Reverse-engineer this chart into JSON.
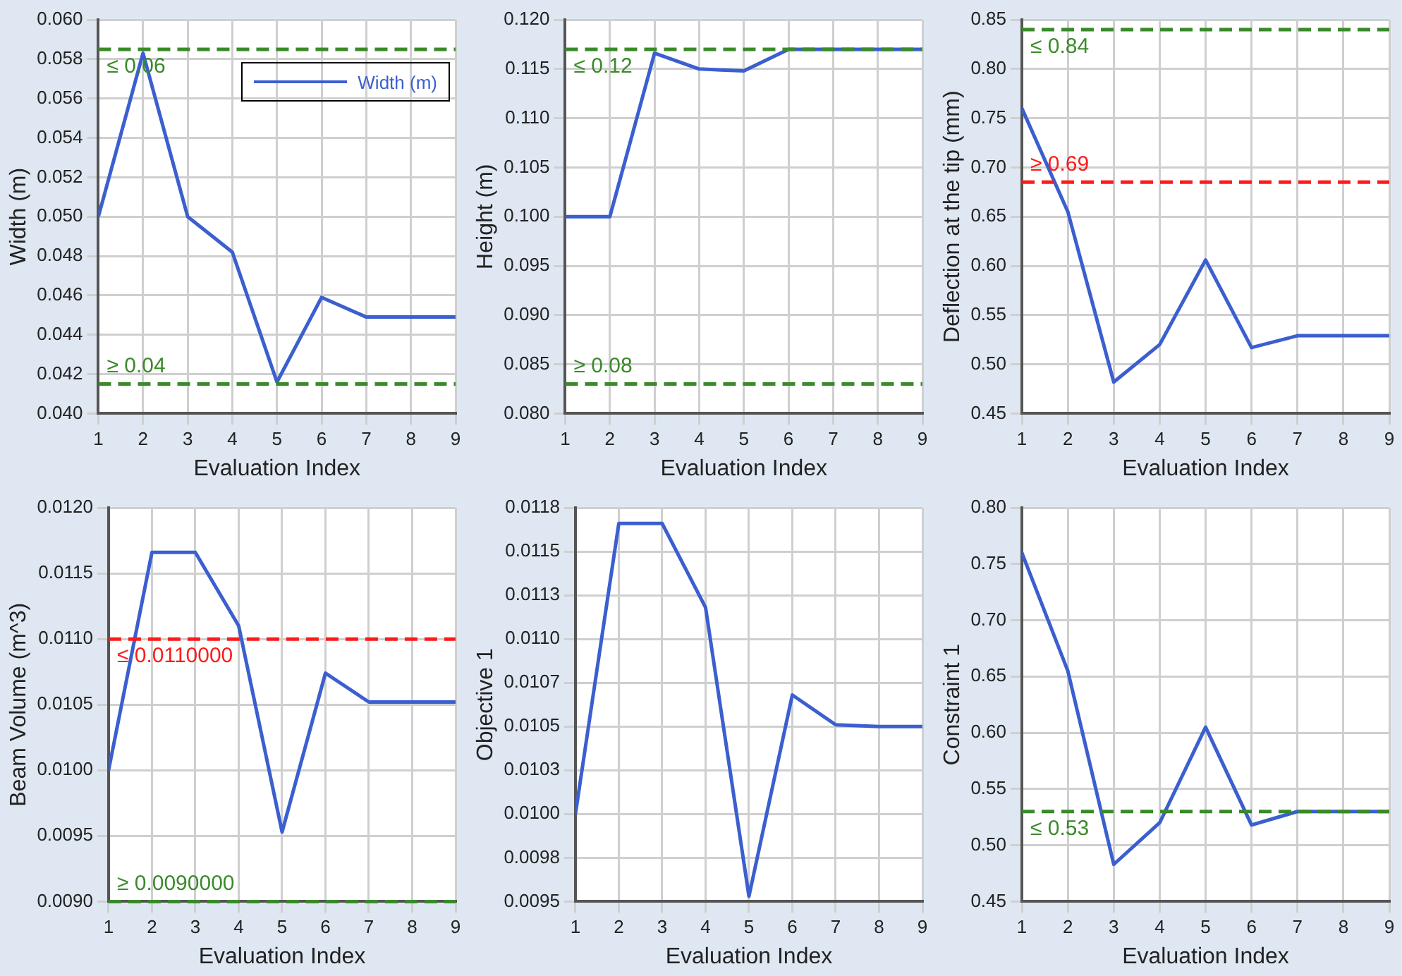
{
  "chart_data": [
    {
      "type": "line",
      "xlabel": "Evaluation Index",
      "ylabel": "Width (m)",
      "x": [
        1,
        2,
        3,
        4,
        5,
        6,
        7,
        8,
        9
      ],
      "xlim": [
        1,
        9
      ],
      "xticks": [
        1,
        2,
        3,
        4,
        5,
        6,
        7,
        8,
        9
      ],
      "ylim": [
        0.04,
        0.06
      ],
      "yticks": [
        {
          "value": 0.04,
          "label": "0.040"
        },
        {
          "value": 0.042,
          "label": "0.042"
        },
        {
          "value": 0.044,
          "label": "0.044"
        },
        {
          "value": 0.046,
          "label": "0.046"
        },
        {
          "value": 0.048,
          "label": "0.048"
        },
        {
          "value": 0.05,
          "label": "0.050"
        },
        {
          "value": 0.052,
          "label": "0.052"
        },
        {
          "value": 0.054,
          "label": "0.054"
        },
        {
          "value": 0.056,
          "label": "0.056"
        },
        {
          "value": 0.058,
          "label": "0.058"
        },
        {
          "value": 0.06,
          "label": "0.060"
        }
      ],
      "series": [
        {
          "name": "Width (m)",
          "color": "#3b5fcf",
          "values": [
            0.05,
            0.0583,
            0.05,
            0.0482,
            0.0416,
            0.0459,
            0.0449,
            0.0449,
            0.0449
          ]
        }
      ],
      "ref_lines": [
        {
          "axis": "y",
          "value": 0.0585,
          "label": "≤ 0.06",
          "color": "#3a8a2a",
          "line_style": "dashed"
        },
        {
          "axis": "y",
          "value": 0.0415,
          "label": "≥ 0.04",
          "color": "#3a8a2a",
          "line_style": "dashed"
        }
      ],
      "grid": true,
      "legend": "top right",
      "marker": "none",
      "line_style": "solid"
    },
    {
      "type": "line",
      "xlabel": "Evaluation Index",
      "ylabel": "Height (m)",
      "x": [
        1,
        2,
        3,
        4,
        5,
        6,
        7,
        8,
        9
      ],
      "xlim": [
        1,
        9
      ],
      "xticks": [
        1,
        2,
        3,
        4,
        5,
        6,
        7,
        8,
        9
      ],
      "ylim": [
        0.08,
        0.12
      ],
      "yticks": [
        {
          "value": 0.08,
          "label": "0.080"
        },
        {
          "value": 0.085,
          "label": "0.085"
        },
        {
          "value": 0.09,
          "label": "0.090"
        },
        {
          "value": 0.095,
          "label": "0.095"
        },
        {
          "value": 0.1,
          "label": "0.100"
        },
        {
          "value": 0.105,
          "label": "0.105"
        },
        {
          "value": 0.11,
          "label": "0.110"
        },
        {
          "value": 0.115,
          "label": "0.115"
        },
        {
          "value": 0.12,
          "label": "0.120"
        }
      ],
      "series": [
        {
          "color": "#3b5fcf",
          "values": [
            0.1,
            0.1,
            0.1166,
            0.115,
            0.1148,
            0.117,
            0.117,
            0.117,
            0.117
          ]
        }
      ],
      "ref_lines": [
        {
          "axis": "y",
          "value": 0.117,
          "label": "≤ 0.12",
          "color": "#3a8a2a",
          "line_style": "dashed"
        },
        {
          "axis": "y",
          "value": 0.083,
          "label": "≥ 0.08",
          "color": "#3a8a2a",
          "line_style": "dashed"
        }
      ],
      "grid": true,
      "marker": "none",
      "line_style": "solid"
    },
    {
      "type": "line",
      "xlabel": "Evaluation Index",
      "ylabel": "Deflection at the tip (mm)",
      "x": [
        1,
        2,
        3,
        4,
        5,
        6,
        7,
        8,
        9
      ],
      "xlim": [
        1,
        9
      ],
      "xticks": [
        1,
        2,
        3,
        4,
        5,
        6,
        7,
        8,
        9
      ],
      "ylim": [
        0.45,
        0.85
      ],
      "yticks": [
        {
          "value": 0.45,
          "label": "0.45"
        },
        {
          "value": 0.5,
          "label": "0.50"
        },
        {
          "value": 0.55,
          "label": "0.55"
        },
        {
          "value": 0.6,
          "label": "0.60"
        },
        {
          "value": 0.65,
          "label": "0.65"
        },
        {
          "value": 0.7,
          "label": "0.70"
        },
        {
          "value": 0.75,
          "label": "0.75"
        },
        {
          "value": 0.8,
          "label": "0.80"
        },
        {
          "value": 0.85,
          "label": "0.85"
        }
      ],
      "series": [
        {
          "color": "#3b5fcf",
          "values": [
            0.76,
            0.655,
            0.482,
            0.52,
            0.606,
            0.517,
            0.529,
            0.529,
            0.529
          ]
        }
      ],
      "ref_lines": [
        {
          "axis": "y",
          "value": 0.84,
          "label": "≤ 0.84",
          "color": "#3a8a2a",
          "line_style": "dashed"
        },
        {
          "axis": "y",
          "value": 0.685,
          "label": "≥ 0.69",
          "color": "#ff1a1a",
          "line_style": "dashed"
        }
      ],
      "grid": true,
      "marker": "none",
      "line_style": "solid"
    },
    {
      "type": "line",
      "xlabel": "Evaluation Index",
      "ylabel": "Beam Volume (m^3)",
      "x": [
        1,
        2,
        3,
        4,
        5,
        6,
        7,
        8,
        9
      ],
      "xlim": [
        1,
        9
      ],
      "xticks": [
        1,
        2,
        3,
        4,
        5,
        6,
        7,
        8,
        9
      ],
      "ylim": [
        0.009,
        0.012
      ],
      "yticks": [
        {
          "value": 0.009,
          "label": "0.0090"
        },
        {
          "value": 0.0095,
          "label": "0.0095"
        },
        {
          "value": 0.01,
          "label": "0.0100"
        },
        {
          "value": 0.0105,
          "label": "0.0105"
        },
        {
          "value": 0.011,
          "label": "0.0110"
        },
        {
          "value": 0.0115,
          "label": "0.0115"
        },
        {
          "value": 0.012,
          "label": "0.0120"
        }
      ],
      "series": [
        {
          "color": "#3b5fcf",
          "values": [
            0.01,
            0.01166,
            0.01166,
            0.0111,
            0.00953,
            0.01074,
            0.01052,
            0.01052,
            0.01052
          ]
        }
      ],
      "ref_lines": [
        {
          "axis": "y",
          "value": 0.011,
          "label": "≤ 0.0110000",
          "color": "#ff1a1a",
          "line_style": "dashed"
        },
        {
          "axis": "y",
          "value": 0.009,
          "label": "≥ 0.0090000",
          "color": "#3a8a2a",
          "line_style": "dashed"
        }
      ],
      "grid": true,
      "marker": "none",
      "line_style": "solid"
    },
    {
      "type": "line",
      "xlabel": "Evaluation Index",
      "ylabel": "Objective 1",
      "x": [
        1,
        2,
        3,
        4,
        5,
        6,
        7,
        8,
        9
      ],
      "xlim": [
        1,
        9
      ],
      "xticks": [
        1,
        2,
        3,
        4,
        5,
        6,
        7,
        8,
        9
      ],
      "ylim": [
        0.0095,
        0.01175
      ],
      "yticks": [
        {
          "value": 0.0095,
          "label": "0.0095"
        },
        {
          "value": 0.00975,
          "label": "0.0098"
        },
        {
          "value": 0.01,
          "label": "0.0100"
        },
        {
          "value": 0.01025,
          "label": "0.0103"
        },
        {
          "value": 0.0105,
          "label": "0.0105"
        },
        {
          "value": 0.01075,
          "label": "0.0107"
        },
        {
          "value": 0.011,
          "label": "0.0110"
        },
        {
          "value": 0.01125,
          "label": "0.0113"
        },
        {
          "value": 0.0115,
          "label": "0.0115"
        },
        {
          "value": 0.01175,
          "label": "0.0118"
        }
      ],
      "series": [
        {
          "color": "#3b5fcf",
          "values": [
            0.01,
            0.01166,
            0.01166,
            0.01118,
            0.00953,
            0.01068,
            0.01051,
            0.0105,
            0.0105
          ]
        }
      ],
      "grid": true,
      "marker": "none",
      "line_style": "solid"
    },
    {
      "type": "line",
      "xlabel": "Evaluation Index",
      "ylabel": "Constraint 1",
      "x": [
        1,
        2,
        3,
        4,
        5,
        6,
        7,
        8,
        9
      ],
      "xlim": [
        1,
        9
      ],
      "xticks": [
        1,
        2,
        3,
        4,
        5,
        6,
        7,
        8,
        9
      ],
      "ylim": [
        0.45,
        0.8
      ],
      "yticks": [
        {
          "value": 0.45,
          "label": "0.45"
        },
        {
          "value": 0.5,
          "label": "0.50"
        },
        {
          "value": 0.55,
          "label": "0.55"
        },
        {
          "value": 0.6,
          "label": "0.60"
        },
        {
          "value": 0.65,
          "label": "0.65"
        },
        {
          "value": 0.7,
          "label": "0.70"
        },
        {
          "value": 0.75,
          "label": "0.75"
        },
        {
          "value": 0.8,
          "label": "0.80"
        }
      ],
      "series": [
        {
          "color": "#3b5fcf",
          "values": [
            0.76,
            0.655,
            0.483,
            0.52,
            0.605,
            0.518,
            0.53,
            0.53,
            0.53
          ]
        }
      ],
      "ref_lines": [
        {
          "axis": "y",
          "value": 0.53,
          "label": "≤ 0.53",
          "color": "#3a8a2a",
          "line_style": "dashed"
        }
      ],
      "grid": true,
      "marker": "none",
      "line_style": "solid"
    }
  ]
}
